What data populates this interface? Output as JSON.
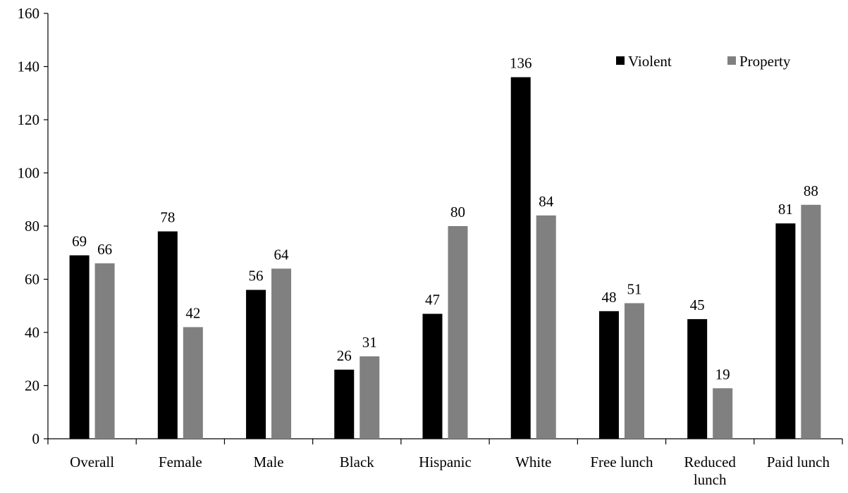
{
  "chart_data": {
    "type": "bar",
    "title": "",
    "xlabel": "",
    "ylabel": "",
    "ylim": [
      0,
      160
    ],
    "yticks": [
      0,
      20,
      40,
      60,
      80,
      100,
      120,
      140,
      160
    ],
    "categories": [
      [
        "Overall"
      ],
      [
        "Female"
      ],
      [
        "Male"
      ],
      [
        "Black"
      ],
      [
        "Hispanic"
      ],
      [
        "White"
      ],
      [
        "Free lunch"
      ],
      [
        "Reduced",
        "lunch"
      ],
      [
        "Paid lunch"
      ]
    ],
    "series": [
      {
        "name": "Violent",
        "color": "#000000",
        "values": [
          69,
          78,
          56,
          26,
          47,
          136,
          48,
          45,
          81
        ]
      },
      {
        "name": "Property",
        "color": "#808080",
        "values": [
          66,
          42,
          64,
          31,
          80,
          84,
          51,
          19,
          88
        ]
      }
    ],
    "legend": "top-right",
    "grid": false
  }
}
